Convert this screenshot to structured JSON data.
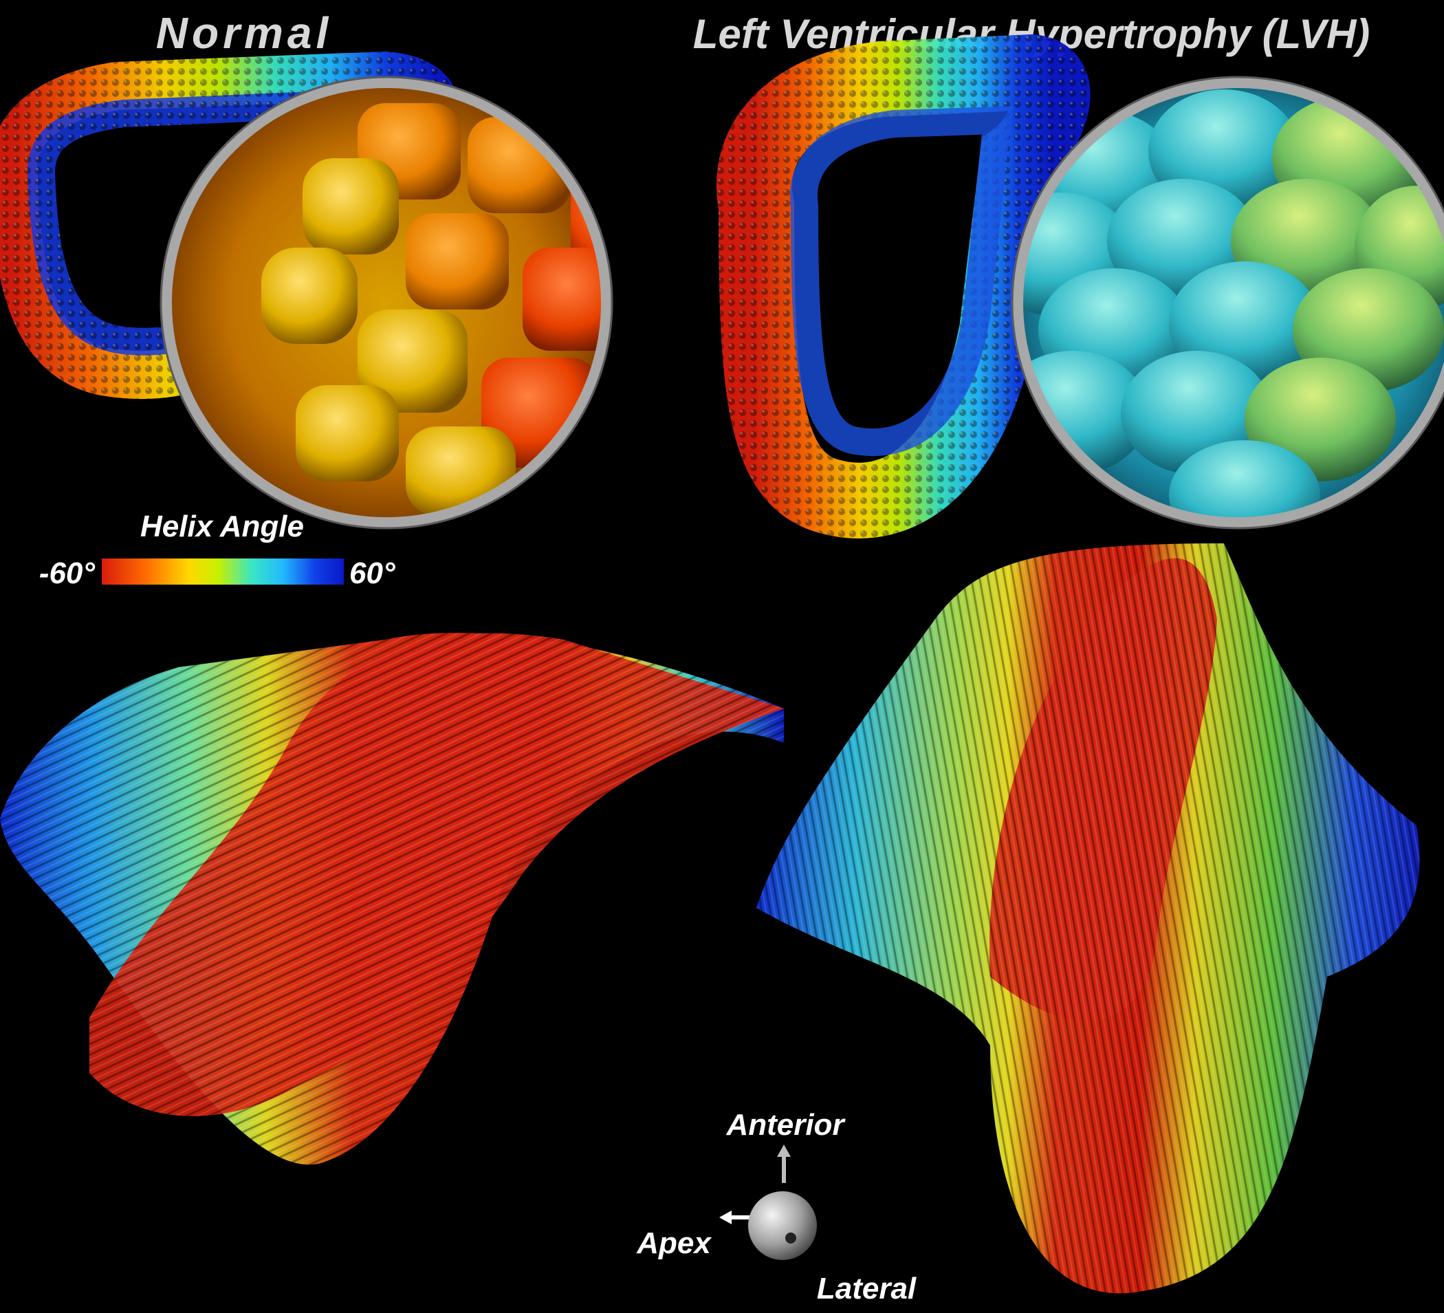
{
  "titles": {
    "normal": "Normal",
    "lvh": "Left Ventricular Hypertrophy (LVH)"
  },
  "colorbar": {
    "title": "Helix Angle",
    "min_label": "-60°",
    "max_label": "60°",
    "stops": [
      "#d91c0c",
      "#ff6a00",
      "#ffd800",
      "#c8f000",
      "#38e6c4",
      "#22b8ff",
      "#1040e8",
      "#0a18c8"
    ]
  },
  "orientation": {
    "anterior": "Anterior",
    "apex": "Apex",
    "lateral": "Lateral"
  },
  "panels": [
    {
      "id": "normal-glyphs",
      "kind": "superquadric-glyphs"
    },
    {
      "id": "lvh-glyphs",
      "kind": "superquadric-glyphs"
    },
    {
      "id": "normal-tracts",
      "kind": "fiber-tracts"
    },
    {
      "id": "lvh-tracts",
      "kind": "fiber-tracts"
    }
  ],
  "colors": {
    "background": "#000000",
    "title_text": "#d8d8d8",
    "label_text": "#ffffff",
    "magnifier_ring": "#a8a8a8"
  }
}
